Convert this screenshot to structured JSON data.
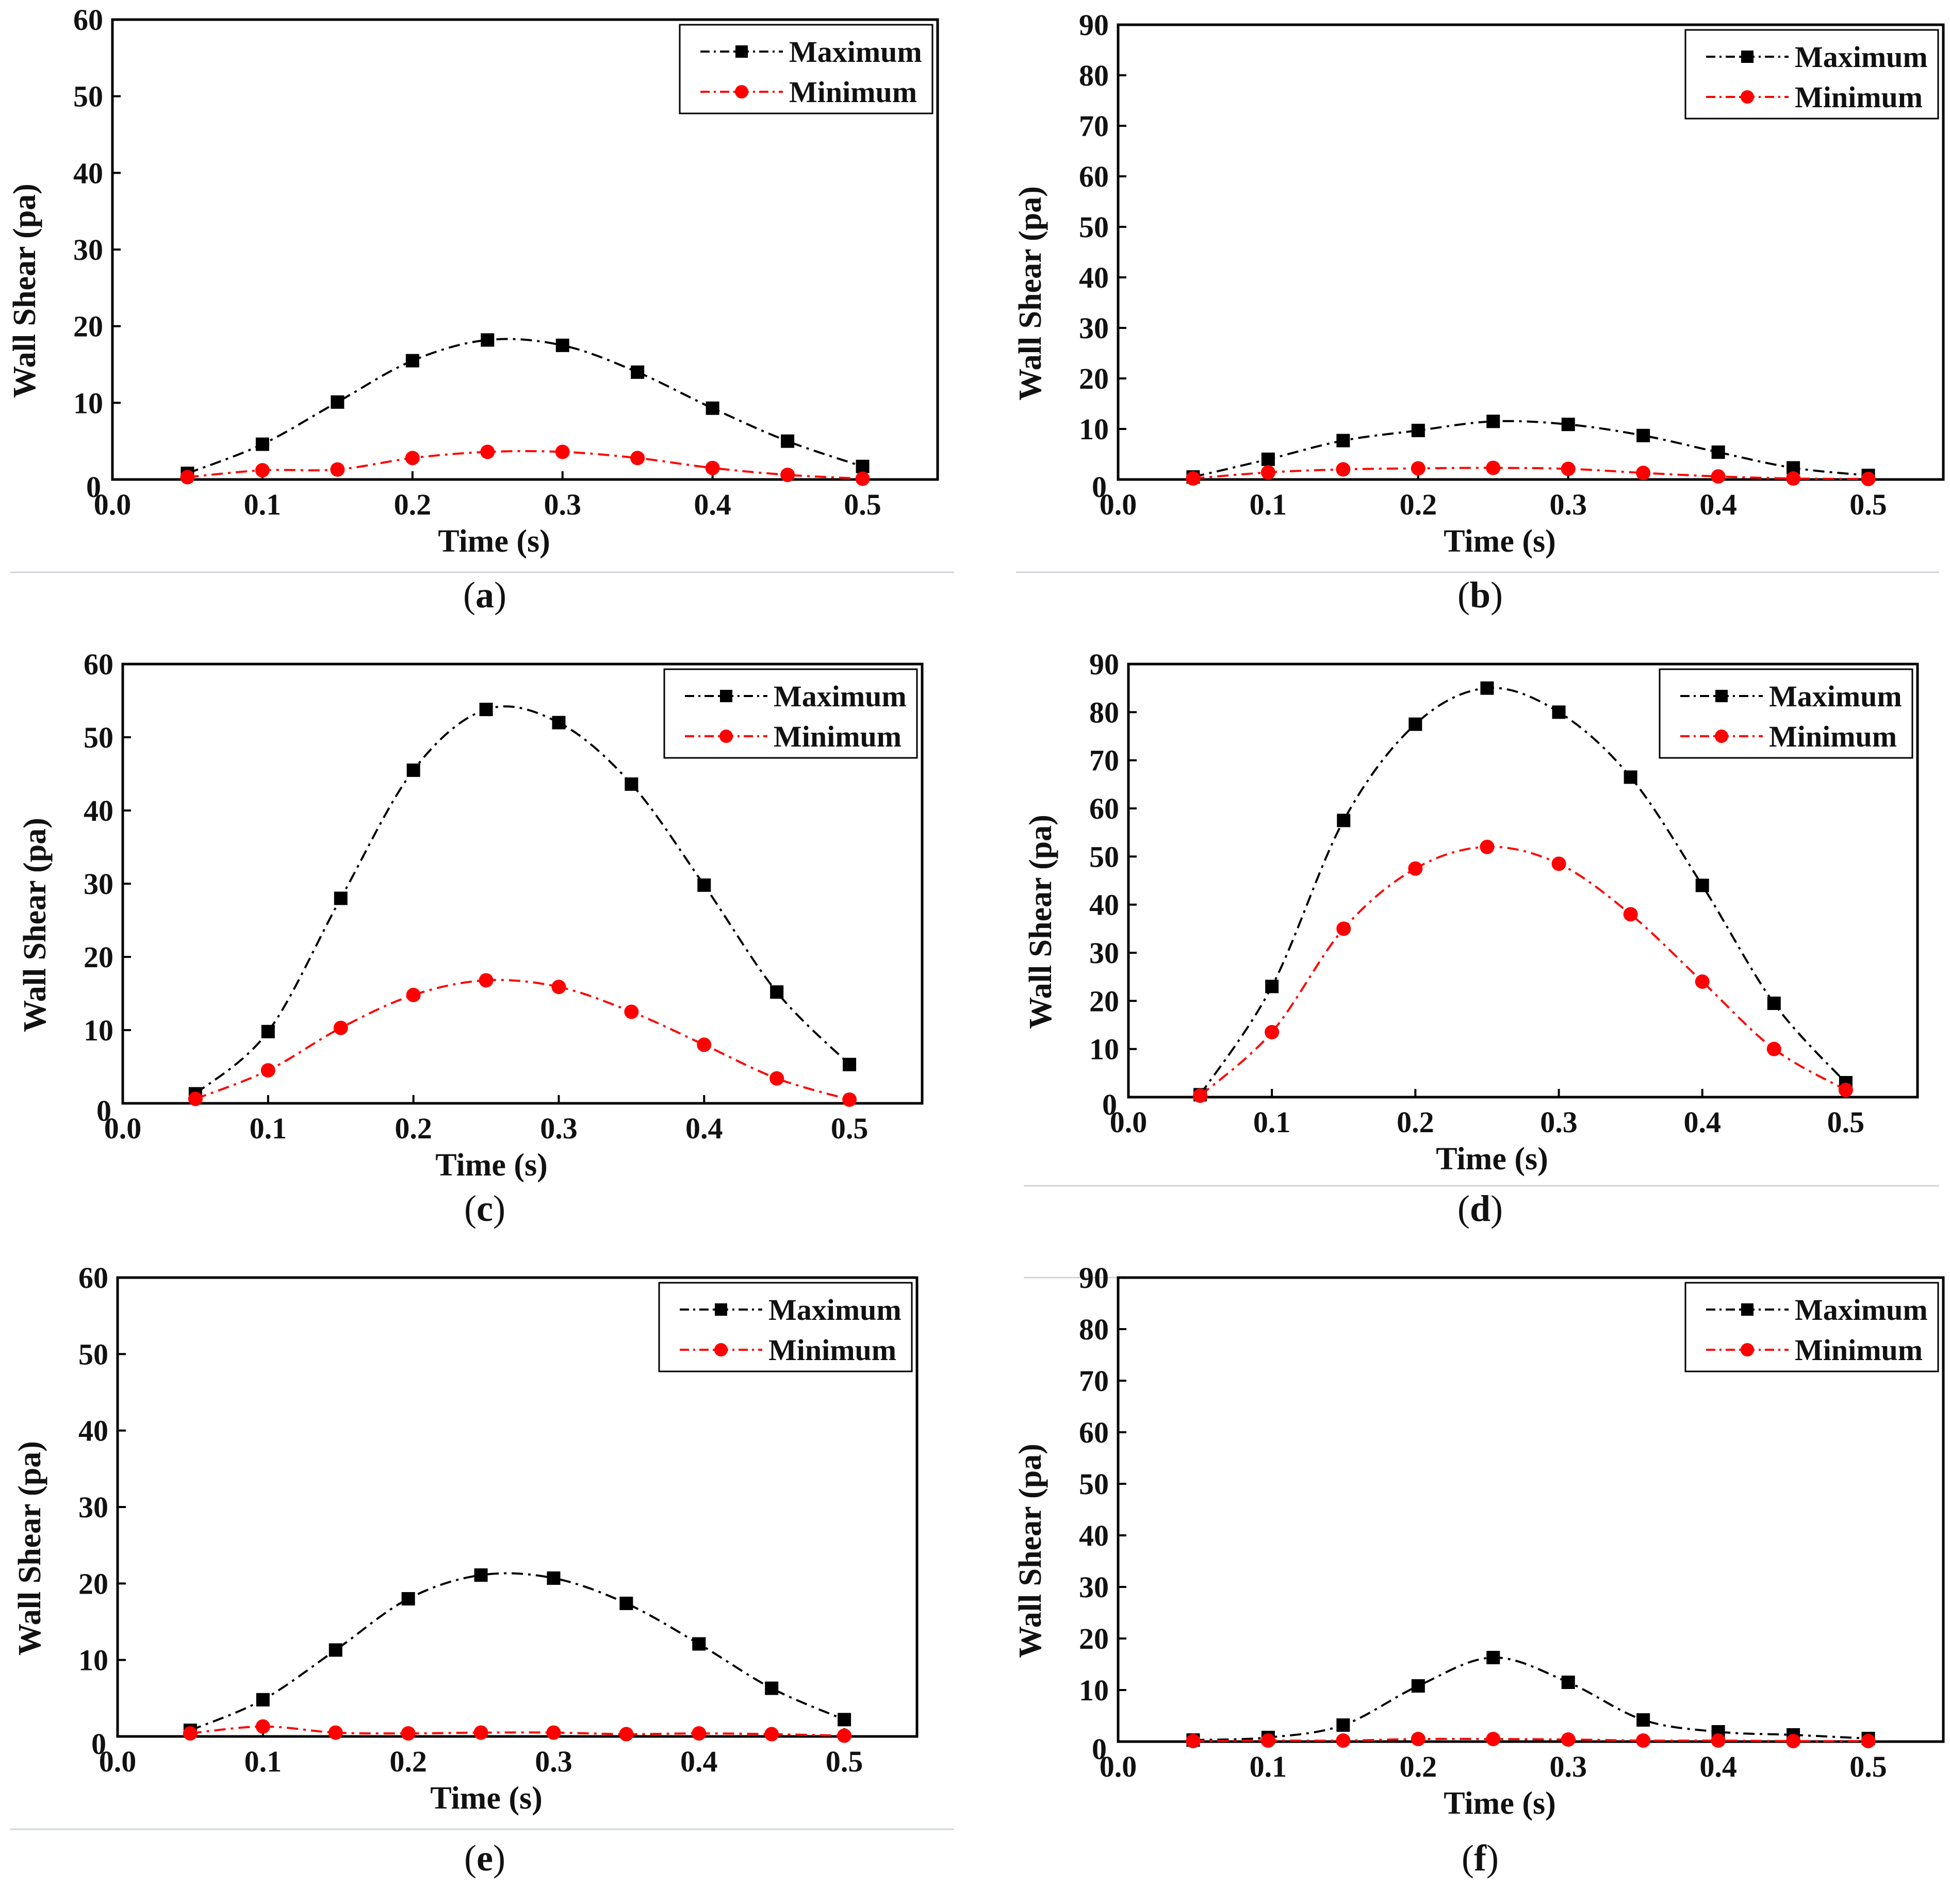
{
  "chart_data": [
    {
      "type": "line",
      "panel": "a",
      "xlabel": "Time (s)",
      "ylabel": "Wall Shear (pa)",
      "xlim": [
        0.0,
        0.55
      ],
      "ylim": [
        0,
        60
      ],
      "x_ticks": [
        0.0,
        0.1,
        0.2,
        0.3,
        0.4,
        0.5
      ],
      "x_tick_labels": [
        "0.0",
        "0.1",
        "0.2",
        "0.3",
        "0.4",
        "0.5"
      ],
      "y_ticks": [
        10,
        20,
        30,
        40,
        50,
        60
      ],
      "y_tick_labels": [
        "10",
        "20",
        "30",
        "40",
        "50",
        "60"
      ],
      "origin_label": "0",
      "legend_position": "top-right",
      "x": [
        0.05,
        0.1,
        0.15,
        0.2,
        0.25,
        0.3,
        0.35,
        0.4,
        0.45,
        0.5
      ],
      "series": [
        {
          "name": "Maximum",
          "color": "#000000",
          "marker": "square",
          "values": [
            0.8,
            4.6,
            10.1,
            15.5,
            18.2,
            17.5,
            14.0,
            9.3,
            5.0,
            1.7
          ]
        },
        {
          "name": "Minimum",
          "color": "#ff0000",
          "marker": "circle",
          "values": [
            0.3,
            1.2,
            1.3,
            2.8,
            3.6,
            3.6,
            2.8,
            1.5,
            0.6,
            0.1
          ]
        }
      ]
    },
    {
      "type": "line",
      "panel": "b",
      "xlabel": "Time (s)",
      "ylabel": "Wall Shear (pa)",
      "xlim": [
        0.0,
        0.55
      ],
      "ylim": [
        0,
        90
      ],
      "x_ticks": [
        0.0,
        0.1,
        0.2,
        0.3,
        0.4,
        0.5
      ],
      "x_tick_labels": [
        "0.0",
        "0.1",
        "0.2",
        "0.3",
        "0.4",
        "0.5"
      ],
      "y_ticks": [
        10,
        20,
        30,
        40,
        50,
        60,
        70,
        80,
        90
      ],
      "y_tick_labels": [
        "10",
        "20",
        "30",
        "40",
        "50",
        "60",
        "70",
        "80",
        "90"
      ],
      "origin_label": "0",
      "legend_position": "top-right",
      "x": [
        0.05,
        0.1,
        0.15,
        0.2,
        0.25,
        0.3,
        0.35,
        0.4,
        0.45,
        0.5
      ],
      "series": [
        {
          "name": "Maximum",
          "color": "#000000",
          "marker": "square",
          "values": [
            0.5,
            4.0,
            7.7,
            9.7,
            11.5,
            10.9,
            8.7,
            5.4,
            2.3,
            0.8
          ]
        },
        {
          "name": "Minimum",
          "color": "#ff0000",
          "marker": "circle",
          "values": [
            0.2,
            1.4,
            2.0,
            2.2,
            2.3,
            2.1,
            1.3,
            0.6,
            0.2,
            0.1
          ]
        }
      ]
    },
    {
      "type": "line",
      "panel": "c",
      "xlabel": "Time (s)",
      "ylabel": "Wall Shear (pa)",
      "xlim": [
        0.0,
        0.55
      ],
      "ylim": [
        0,
        60
      ],
      "x_ticks": [
        0.0,
        0.1,
        0.2,
        0.3,
        0.4,
        0.5
      ],
      "x_tick_labels": [
        "0.0",
        "0.1",
        "0.2",
        "0.3",
        "0.4",
        "0.5"
      ],
      "y_ticks": [
        10,
        20,
        30,
        40,
        50,
        60
      ],
      "y_tick_labels": [
        "10",
        "20",
        "30",
        "40",
        "50",
        "60"
      ],
      "origin_label": "0",
      "legend_position": "top-right",
      "x": [
        0.05,
        0.1,
        0.15,
        0.2,
        0.25,
        0.3,
        0.35,
        0.4,
        0.45,
        0.5
      ],
      "series": [
        {
          "name": "Maximum",
          "color": "#000000",
          "marker": "square",
          "values": [
            1.3,
            9.8,
            28.0,
            45.5,
            53.8,
            52.0,
            43.6,
            29.8,
            15.2,
            5.3
          ]
        },
        {
          "name": "Minimum",
          "color": "#ff0000",
          "marker": "circle",
          "values": [
            0.6,
            4.5,
            10.3,
            14.8,
            16.8,
            15.9,
            12.5,
            8.0,
            3.4,
            0.5
          ]
        }
      ]
    },
    {
      "type": "line",
      "panel": "d",
      "xlabel": "Time (s)",
      "ylabel": "Wall Shear (pa)",
      "xlim": [
        0.0,
        0.55
      ],
      "ylim": [
        0,
        90
      ],
      "x_ticks": [
        0.0,
        0.1,
        0.2,
        0.3,
        0.4,
        0.5
      ],
      "x_tick_labels": [
        "0.0",
        "0.1",
        "0.2",
        "0.3",
        "0.4",
        "0.5"
      ],
      "y_ticks": [
        10,
        20,
        30,
        40,
        50,
        60,
        70,
        80,
        90
      ],
      "y_tick_labels": [
        "10",
        "20",
        "30",
        "40",
        "50",
        "60",
        "70",
        "80",
        "90"
      ],
      "origin_label": "0",
      "legend_position": "top-right",
      "x": [
        0.05,
        0.1,
        0.15,
        0.2,
        0.25,
        0.3,
        0.35,
        0.4,
        0.45,
        0.5
      ],
      "series": [
        {
          "name": "Maximum",
          "color": "#000000",
          "marker": "square",
          "values": [
            0.5,
            23.0,
            57.5,
            77.5,
            85.0,
            80.0,
            66.5,
            44.0,
            19.5,
            3.0
          ]
        },
        {
          "name": "Minimum",
          "color": "#ff0000",
          "marker": "circle",
          "values": [
            0.3,
            13.5,
            35.0,
            47.5,
            52.0,
            48.5,
            38.0,
            24.0,
            10.0,
            1.5
          ]
        }
      ]
    },
    {
      "type": "line",
      "panel": "e",
      "xlabel": "Time (s)",
      "ylabel": "Wall Shear (pa)",
      "xlim": [
        0.0,
        0.55
      ],
      "ylim": [
        0,
        60
      ],
      "x_ticks": [
        0.0,
        0.1,
        0.2,
        0.3,
        0.4,
        0.5
      ],
      "x_tick_labels": [
        "0.0",
        "0.1",
        "0.2",
        "0.3",
        "0.4",
        "0.5"
      ],
      "y_ticks": [
        10,
        20,
        30,
        40,
        50,
        60
      ],
      "y_tick_labels": [
        "10",
        "20",
        "30",
        "40",
        "50",
        "60"
      ],
      "origin_label": "0",
      "legend_position": "top-right",
      "x": [
        0.05,
        0.1,
        0.15,
        0.2,
        0.25,
        0.3,
        0.35,
        0.4,
        0.45,
        0.5
      ],
      "series": [
        {
          "name": "Maximum",
          "color": "#000000",
          "marker": "square",
          "values": [
            0.8,
            4.8,
            11.3,
            18.0,
            21.1,
            20.7,
            17.4,
            12.1,
            6.3,
            2.2
          ]
        },
        {
          "name": "Minimum",
          "color": "#ff0000",
          "marker": "circle",
          "values": [
            0.4,
            1.3,
            0.5,
            0.4,
            0.5,
            0.5,
            0.3,
            0.4,
            0.3,
            0.1
          ]
        }
      ]
    },
    {
      "type": "line",
      "panel": "f",
      "xlabel": "Time (s)",
      "ylabel": "Wall Shear (pa)",
      "xlim": [
        0.0,
        0.55
      ],
      "ylim": [
        0,
        90
      ],
      "x_ticks": [
        0.0,
        0.1,
        0.2,
        0.3,
        0.4,
        0.5
      ],
      "x_tick_labels": [
        "0.0",
        "0.1",
        "0.2",
        "0.3",
        "0.4",
        "0.5"
      ],
      "y_ticks": [
        10,
        20,
        30,
        40,
        50,
        60,
        70,
        80,
        90
      ],
      "y_tick_labels": [
        "10",
        "20",
        "30",
        "40",
        "50",
        "60",
        "70",
        "80",
        "90"
      ],
      "origin_label": "0",
      "legend_position": "top-right",
      "x": [
        0.05,
        0.1,
        0.15,
        0.2,
        0.25,
        0.3,
        0.35,
        0.4,
        0.45,
        0.5
      ],
      "series": [
        {
          "name": "Maximum",
          "color": "#000000",
          "marker": "square",
          "values": [
            0.3,
            0.8,
            3.2,
            10.8,
            16.3,
            11.5,
            4.2,
            1.9,
            1.3,
            0.6
          ]
        },
        {
          "name": "Minimum",
          "color": "#ff0000",
          "marker": "circle",
          "values": [
            0.1,
            0.2,
            0.2,
            0.5,
            0.5,
            0.4,
            0.2,
            0.2,
            0.1,
            0.1
          ]
        }
      ]
    }
  ],
  "captions": [
    {
      "open": "(",
      "letter": "a",
      "close": ")"
    },
    {
      "open": "(",
      "letter": "b",
      "close": ")"
    },
    {
      "open": "(",
      "letter": "c",
      "close": ")"
    },
    {
      "open": "(",
      "letter": "d",
      "close": ")"
    },
    {
      "open": "(",
      "letter": "e",
      "close": ")"
    },
    {
      "open": "(",
      "letter": "f",
      "close": ")"
    }
  ]
}
